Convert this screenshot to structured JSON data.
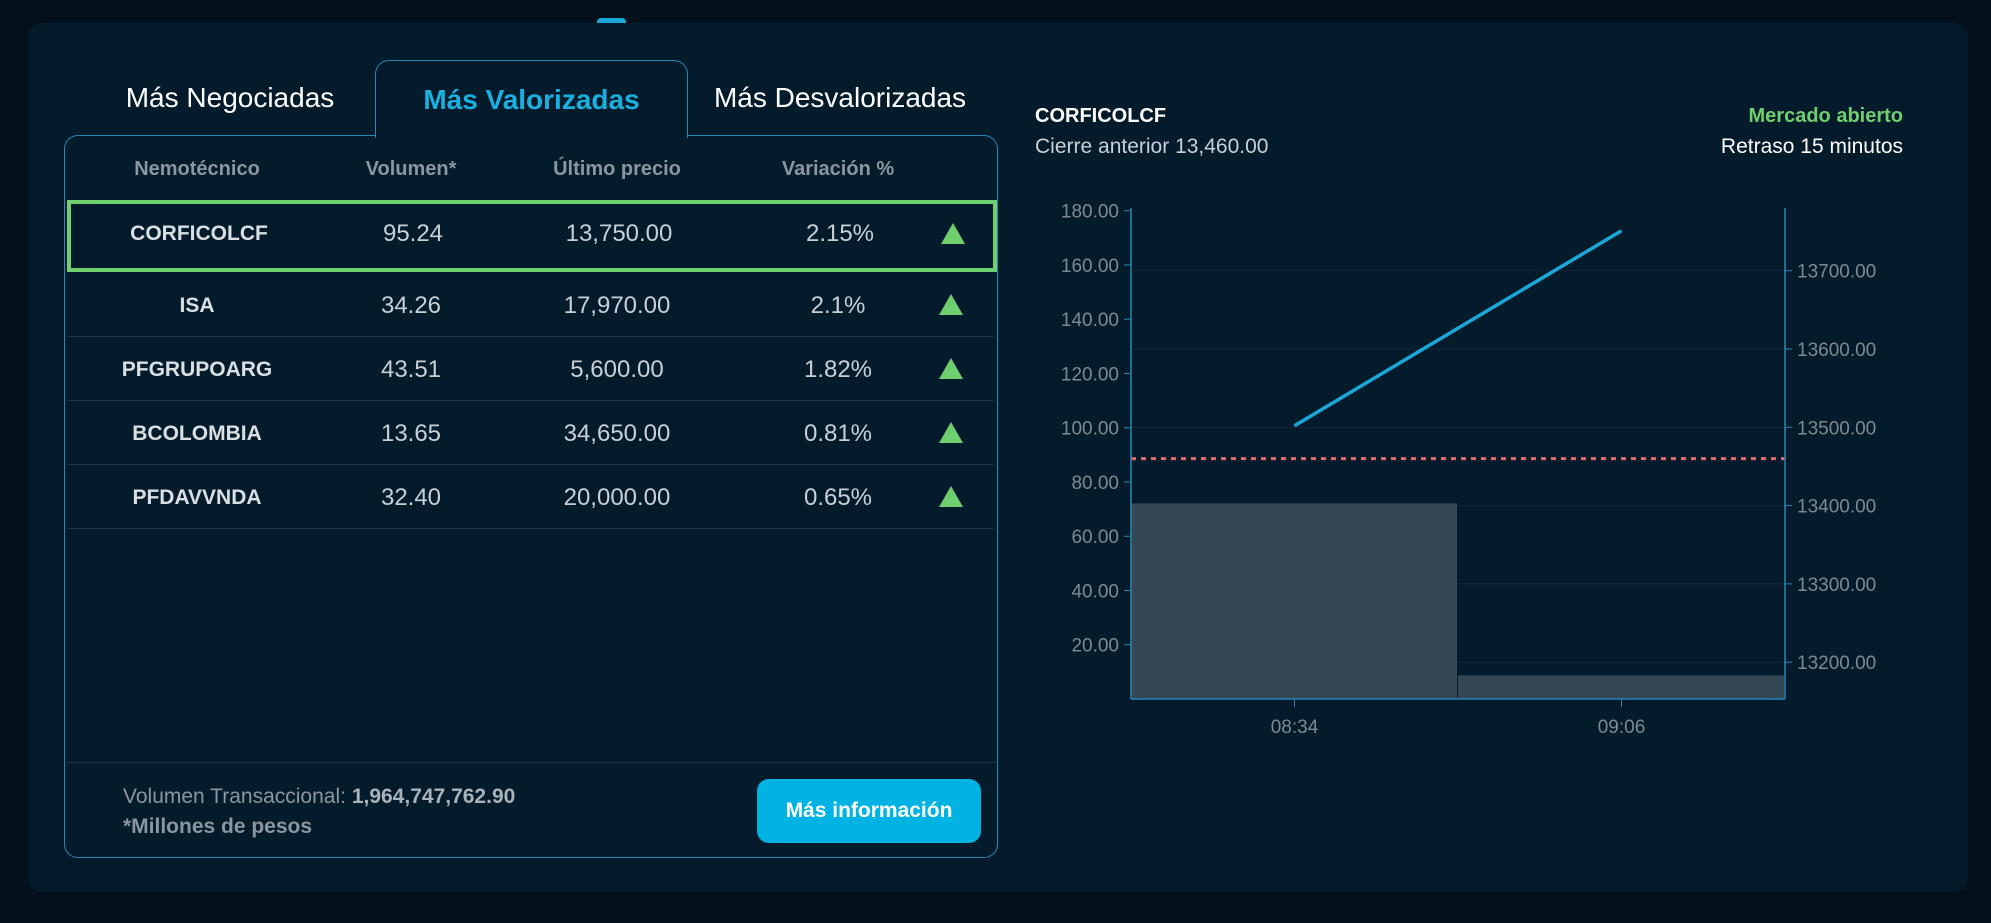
{
  "tabs": [
    {
      "label": "Más Negociadas",
      "active": false
    },
    {
      "label": "Más Valorizadas",
      "active": true
    },
    {
      "label": "Más Desvalorizadas",
      "active": false
    }
  ],
  "table": {
    "headers": [
      "Nemotécnico",
      "Volumen*",
      "Último precio",
      "Variación %"
    ],
    "rows": [
      {
        "nemo": "CORFICOLCF",
        "volumen": "95.24",
        "precio": "13,750.00",
        "variacion": "2.15%",
        "trend": "up",
        "selected": true
      },
      {
        "nemo": "ISA",
        "volumen": "34.26",
        "precio": "17,970.00",
        "variacion": "2.1%",
        "trend": "up"
      },
      {
        "nemo": "PFGRUPOARG",
        "volumen": "43.51",
        "precio": "5,600.00",
        "variacion": "1.82%",
        "trend": "up"
      },
      {
        "nemo": "BCOLOMBIA",
        "volumen": "13.65",
        "precio": "34,650.00",
        "variacion": "0.81%",
        "trend": "up"
      },
      {
        "nemo": "PFDAVVNDA",
        "volumen": "32.40",
        "precio": "20,000.00",
        "variacion": "0.65%",
        "trend": "up"
      }
    ],
    "footer": {
      "volume_label": "Volumen Transaccional:",
      "volume_value": "1,964,747,762.90",
      "note": "*Millones de pesos",
      "button": "Más información"
    }
  },
  "chart_header": {
    "symbol": "CORFICOLCF",
    "prev_close": "Cierre anterior 13,460.00",
    "status": "Mercado abierto",
    "delay": "Retraso 15 minutos"
  },
  "colors": {
    "accent": "#00b3e3",
    "up": "#6fcf6f",
    "line": "#1ba8d8",
    "prev_close_line": "#e26b6b",
    "bars": "#344754"
  },
  "chart_data": {
    "type": "bar+line",
    "categories": [
      "08:34",
      "09:06"
    ],
    "volume": {
      "axis": "left",
      "values": [
        72.1,
        8.7
      ],
      "ylim": [
        0,
        181
      ],
      "ticks": [
        "20.00",
        "40.00",
        "60.00",
        "80.00",
        "100.00",
        "120.00",
        "140.00",
        "160.00",
        "180.00"
      ]
    },
    "price": {
      "axis": "right",
      "values": [
        13502,
        13751
      ],
      "ylim": [
        13153,
        13780
      ],
      "ticks": [
        "13200.00",
        "13300.00",
        "13400.00",
        "13500.00",
        "13600.00",
        "13700.00"
      ]
    },
    "prev_close": 13460,
    "grid": true
  }
}
